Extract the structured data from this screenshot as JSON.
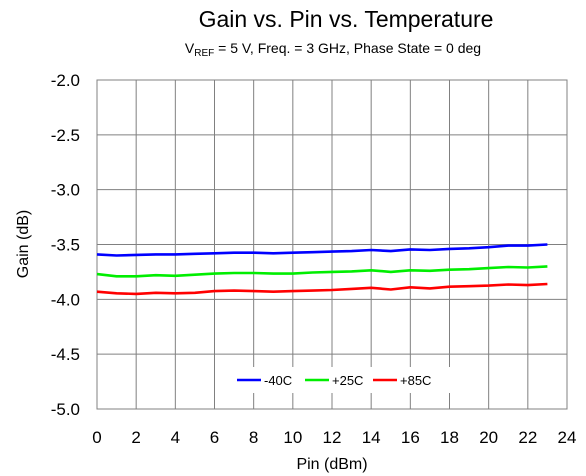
{
  "chart_data": {
    "type": "line",
    "title": "Gain vs. Pin vs. Temperature",
    "subtitle": {
      "prefix": "V",
      "subscript": "REF",
      "rest": " = 5 V, Freq. = 3 GHz, Phase State = 0 deg"
    },
    "xlabel": "Pin (dBm)",
    "ylabel": "Gain (dB)",
    "xlim": [
      0,
      24
    ],
    "ylim": [
      -5.0,
      -2.0
    ],
    "xticks": [
      "0",
      "2",
      "4",
      "6",
      "8",
      "10",
      "12",
      "14",
      "16",
      "18",
      "20",
      "22",
      "24"
    ],
    "yticks": [
      "-2.0",
      "-2.5",
      "-3.0",
      "-3.5",
      "-4.0",
      "-4.5",
      "-5.0"
    ],
    "grid": true,
    "legend_position": "bottom-center",
    "x": [
      0,
      1,
      2,
      3,
      4,
      5,
      6,
      7,
      8,
      9,
      10,
      11,
      12,
      13,
      14,
      15,
      16,
      17,
      18,
      19,
      20,
      21,
      22,
      23
    ],
    "series": [
      {
        "name": "-40C",
        "color": "#0000ff",
        "values": [
          -3.59,
          -3.6,
          -3.595,
          -3.59,
          -3.59,
          -3.585,
          -3.58,
          -3.575,
          -3.575,
          -3.58,
          -3.575,
          -3.57,
          -3.565,
          -3.56,
          -3.55,
          -3.56,
          -3.545,
          -3.55,
          -3.54,
          -3.535,
          -3.525,
          -3.51,
          -3.51,
          -3.5
        ]
      },
      {
        "name": "+25C",
        "color": "#00ee00",
        "values": [
          -3.77,
          -3.79,
          -3.79,
          -3.78,
          -3.785,
          -3.775,
          -3.765,
          -3.76,
          -3.76,
          -3.765,
          -3.765,
          -3.755,
          -3.75,
          -3.745,
          -3.735,
          -3.75,
          -3.735,
          -3.74,
          -3.73,
          -3.725,
          -3.715,
          -3.705,
          -3.71,
          -3.7
        ]
      },
      {
        "name": "+85C",
        "color": "#ff0000",
        "values": [
          -3.93,
          -3.945,
          -3.95,
          -3.94,
          -3.945,
          -3.94,
          -3.925,
          -3.92,
          -3.925,
          -3.93,
          -3.925,
          -3.92,
          -3.915,
          -3.905,
          -3.895,
          -3.91,
          -3.89,
          -3.9,
          -3.885,
          -3.88,
          -3.875,
          -3.865,
          -3.87,
          -3.86
        ]
      }
    ]
  }
}
